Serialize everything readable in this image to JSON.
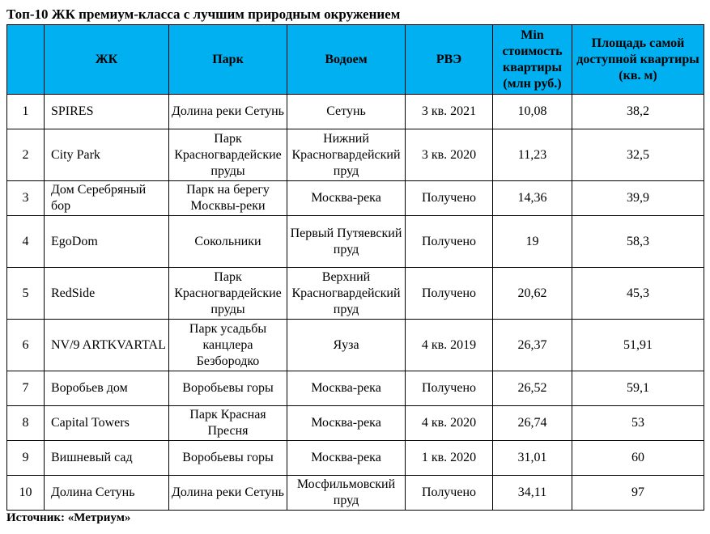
{
  "title": "Топ-10 ЖК премиум-класса с лучшим природным окружением",
  "headers": {
    "num": "",
    "complex": "ЖК",
    "park": "Парк",
    "water": "Водоем",
    "rve": "РВЭ",
    "min_price": "Min стоимость квартиры (млн руб.)",
    "min_area": "Площадь самой доступной квартиры (кв. м)"
  },
  "rows": [
    {
      "n": "1",
      "complex": "SPIRES",
      "park": "Долина реки Сетунь",
      "water": "Сетунь",
      "rve": "3 кв. 2021",
      "price": "10,08",
      "area": "38,2"
    },
    {
      "n": "2",
      "complex": "City Park",
      "park": "Парк Красногвардейские пруды",
      "water": "Нижний Красногвардейский пруд",
      "rve": "3 кв. 2020",
      "price": "11,23",
      "area": "32,5"
    },
    {
      "n": "3",
      "complex": "Дом Серебряный бор",
      "park": "Парк на берегу Москвы-реки",
      "water": "Москва-река",
      "rve": "Получено",
      "price": "14,36",
      "area": "39,9"
    },
    {
      "n": "4",
      "complex": "EgoDom",
      "park": "Сокольники",
      "water": "Первый Путяевский пруд",
      "rve": "Получено",
      "price": "19",
      "area": "58,3"
    },
    {
      "n": "5",
      "complex": "RedSide",
      "park": "Парк Красногвардейские пруды",
      "water": "Верхний Красногвардейский пруд",
      "rve": "Получено",
      "price": "20,62",
      "area": "45,3"
    },
    {
      "n": "6",
      "complex": "NV/9 ARTKVARTAL",
      "park": "Парк усадьбы канцлера Безбородко",
      "water": "Яуза",
      "rve": "4 кв. 2019",
      "price": "26,37",
      "area": "51,91"
    },
    {
      "n": "7",
      "complex": "Воробьев дом",
      "park": "Воробьевы горы",
      "water": "Москва-река",
      "rve": "Получено",
      "price": "26,52",
      "area": "59,1"
    },
    {
      "n": "8",
      "complex": "Capital Towers",
      "park": "Парк Красная Пресня",
      "water": "Москва-река",
      "rve": "4 кв. 2020",
      "price": "26,74",
      "area": "53"
    },
    {
      "n": "9",
      "complex": "Вишневый сад",
      "park": "Воробьевы горы",
      "water": "Москва-река",
      "rve": "1 кв. 2020",
      "price": "31,01",
      "area": "60"
    },
    {
      "n": "10",
      "complex": "Долина Сетунь",
      "park": "Долина реки Сетунь",
      "water": "Мосфильмовский пруд",
      "rve": "Получено",
      "price": "34,11",
      "area": "97"
    }
  ],
  "source": "Источник: «Метриум»",
  "colors": {
    "header_bg": "#00b0f0"
  }
}
